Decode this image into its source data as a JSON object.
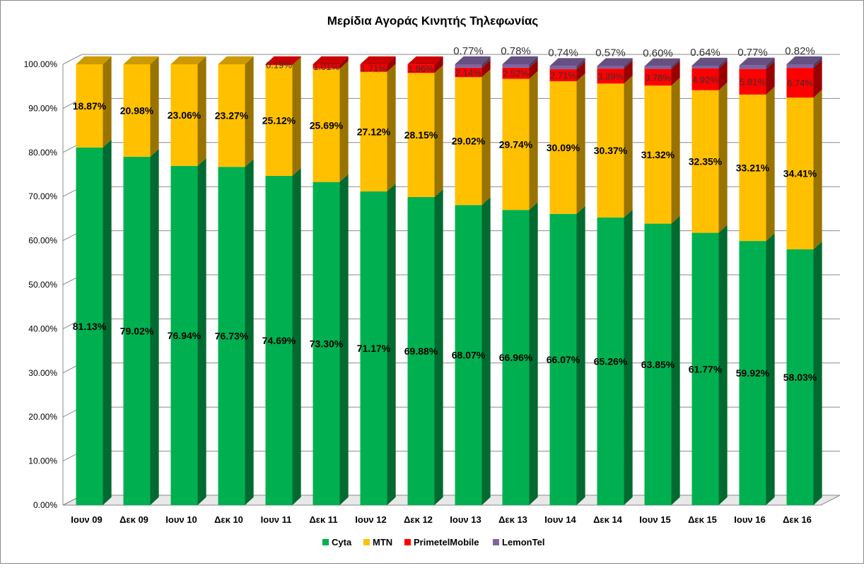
{
  "chart_data": {
    "type": "bar",
    "stacked": true,
    "three_d": true,
    "title": "Μερίδια Αγοράς Κινητής Τηλεφωνίας",
    "xlabel": "",
    "ylabel": "",
    "ylim": [
      0,
      100
    ],
    "y_ticks": [
      "0.00%",
      "10.00%",
      "20.00%",
      "30.00%",
      "40.00%",
      "50.00%",
      "60.00%",
      "70.00%",
      "80.00%",
      "90.00%",
      "100.00%"
    ],
    "grid": true,
    "legend_position": "bottom",
    "categories": [
      "Ιουν 09",
      "Δεκ 09",
      "Ιουν 10",
      "Δεκ 10",
      "Ιουν 11",
      "Δεκ 11",
      "Ιουν 12",
      "Δεκ 12",
      "Ιουν 13",
      "Δεκ 13",
      "Ιουν 14",
      "Δεκ 14",
      "Ιουν 15",
      "Δεκ 15",
      "Ιουν 16",
      "Δεκ 16"
    ],
    "series": [
      {
        "name": "Cyta",
        "color": "#00b050",
        "values": [
          81.13,
          79.02,
          76.94,
          76.73,
          74.69,
          73.3,
          71.17,
          69.88,
          68.07,
          66.96,
          66.07,
          65.26,
          63.85,
          61.77,
          59.92,
          58.03
        ],
        "labels": [
          "81.13%",
          "79.02%",
          "76.94%",
          "76.73%",
          "74.69%",
          "73.30%",
          "71.17%",
          "69.88%",
          "68.07%",
          "66.96%",
          "66.07%",
          "65.26%",
          "63.85%",
          "61.77%",
          "59.92%",
          "58.03%"
        ]
      },
      {
        "name": "MTN",
        "color": "#ffc000",
        "values": [
          18.87,
          20.98,
          23.06,
          23.27,
          25.12,
          25.69,
          27.12,
          28.15,
          29.02,
          29.74,
          30.09,
          30.37,
          31.32,
          32.35,
          33.21,
          34.41
        ],
        "labels": [
          "18.87%",
          "20.98%",
          "23.06%",
          "23.27%",
          "25.12%",
          "25.69%",
          "27.12%",
          "28.15%",
          "29.02%",
          "29.74%",
          "30.09%",
          "30.37%",
          "31.32%",
          "32.35%",
          "33.21%",
          "34.41%"
        ]
      },
      {
        "name": "PrimetelMobile",
        "color": "#ff0000",
        "values": [
          0,
          0,
          0,
          0,
          0.19,
          1.01,
          1.71,
          1.96,
          2.14,
          2.52,
          2.71,
          3.39,
          3.78,
          4.92,
          5.81,
          6.74
        ],
        "labels": [
          "",
          "",
          "",
          "",
          "0.19%",
          "1.01%",
          "1.71%",
          "1.96%",
          "2.14%",
          "2.52%",
          "2.71%",
          "3.39%",
          "3.78%",
          "4.92%",
          "5.81%",
          "6.74%"
        ]
      },
      {
        "name": "LemonTel",
        "color": "#8064a2",
        "values": [
          0,
          0,
          0,
          0,
          0,
          0,
          0,
          0,
          0.77,
          0.78,
          0.74,
          0.57,
          0.6,
          0.64,
          0.77,
          0.82
        ],
        "labels": [
          "",
          "",
          "",
          "",
          "",
          "",
          "",
          "",
          "0.77%",
          "0.78%",
          "0.74%",
          "0.57%",
          "0.60%",
          "0.64%",
          "0.77%",
          "0.82%"
        ]
      }
    ]
  }
}
